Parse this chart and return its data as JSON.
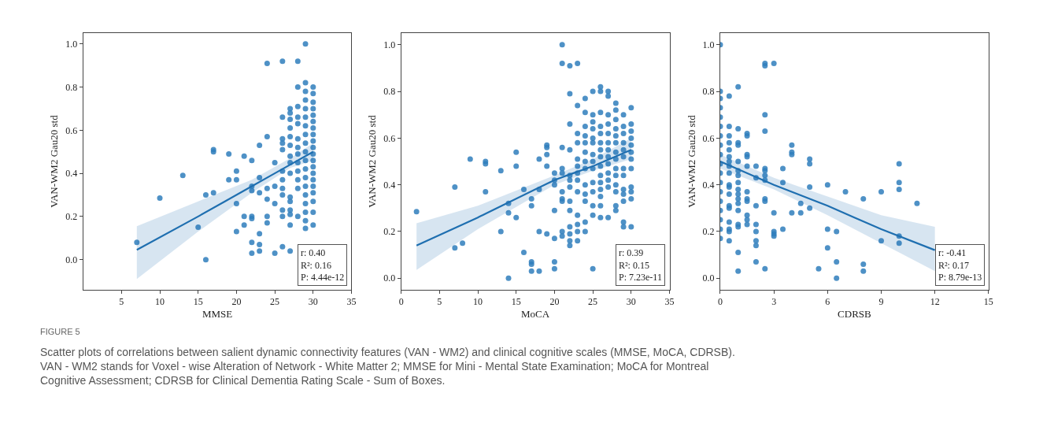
{
  "chart_data": [
    {
      "type": "scatter",
      "xlabel": "MMSE",
      "ylabel": "VAN-WM2 Gau20 std",
      "xlim": [
        0,
        35
      ],
      "ylim": [
        -0.14,
        1.05
      ],
      "xticks": [
        5,
        10,
        15,
        20,
        25,
        30,
        35
      ],
      "yticks": [
        {
          "value": 0,
          "label": "0.0"
        },
        {
          "value": 0.2,
          "label": "0.2"
        },
        {
          "value": 0.4,
          "label": "0.4"
        },
        {
          "value": 0.6,
          "label": "0.6"
        },
        {
          "value": 0.8,
          "label": "0.8"
        },
        {
          "value": 1,
          "label": "1.0"
        }
      ],
      "series": [
        {
          "marker": "circle",
          "color": "#2f7ebc",
          "x": [
            7,
            10,
            13,
            15,
            16,
            16,
            17,
            17,
            17,
            19,
            19,
            20,
            20,
            20,
            20,
            21,
            21,
            21,
            22,
            22,
            22,
            22,
            22,
            22,
            22,
            23,
            23,
            23,
            23,
            23,
            23,
            24,
            24,
            24,
            24,
            24,
            24,
            25,
            25,
            25,
            25,
            26,
            26,
            26,
            26,
            26,
            26,
            26,
            26,
            26,
            26,
            26,
            26,
            27,
            27,
            27,
            27,
            27,
            27,
            27,
            27,
            27,
            27,
            27,
            27,
            27,
            27,
            27,
            28,
            28,
            28,
            28,
            28,
            28,
            28,
            28,
            28,
            28,
            28,
            28,
            28,
            29,
            29,
            29,
            29,
            29,
            29,
            29,
            29,
            29,
            29,
            29,
            29,
            29,
            29,
            29,
            29,
            29,
            29,
            29,
            30,
            30,
            30,
            30,
            30,
            30,
            30,
            30,
            30,
            30,
            30,
            30,
            30,
            30,
            30,
            30,
            30,
            30,
            30,
            30
          ],
          "values": [
            0.08,
            0.285,
            0.39,
            0.15,
            0.3,
            0.0,
            0.51,
            0.5,
            0.31,
            0.49,
            0.37,
            0.41,
            0.37,
            0.26,
            0.13,
            0.48,
            0.2,
            0.16,
            0.46,
            0.34,
            0.32,
            0.2,
            0.19,
            0.08,
            0.03,
            0.53,
            0.38,
            0.31,
            0.12,
            0.07,
            0.04,
            0.91,
            0.57,
            0.33,
            0.28,
            0.2,
            0.17,
            0.45,
            0.34,
            0.26,
            0.03,
            0.92,
            0.66,
            0.56,
            0.54,
            0.51,
            0.41,
            0.37,
            0.33,
            0.3,
            0.23,
            0.2,
            0.06,
            0.7,
            0.68,
            0.65,
            0.61,
            0.57,
            0.53,
            0.48,
            0.45,
            0.4,
            0.29,
            0.27,
            0.23,
            0.21,
            0.16,
            0.04,
            0.92,
            0.8,
            0.71,
            0.66,
            0.63,
            0.56,
            0.52,
            0.49,
            0.45,
            0.41,
            0.37,
            0.33,
            0.2,
            1.0,
            0.82,
            0.78,
            0.74,
            0.7,
            0.66,
            0.62,
            0.58,
            0.54,
            0.5,
            0.46,
            0.42,
            0.38,
            0.34,
            0.3,
            0.26,
            0.22,
            0.18,
            0.145,
            0.8,
            0.77,
            0.73,
            0.7,
            0.67,
            0.64,
            0.61,
            0.58,
            0.55,
            0.52,
            0.49,
            0.46,
            0.43,
            0.4,
            0.37,
            0.34,
            0.31,
            0.27,
            0.22,
            0.16
          ]
        },
        {
          "type": "line",
          "color": "#1f6fb0",
          "x": [
            7,
            15,
            22,
            27,
            30
          ],
          "values": [
            0.045,
            0.2,
            0.34,
            0.44,
            0.5
          ],
          "lower": [
            -0.09,
            0.13,
            0.31,
            0.425,
            0.46
          ],
          "upper": [
            0.155,
            0.27,
            0.37,
            0.47,
            0.54
          ]
        }
      ],
      "annotations": [
        "r: 0.40\nR²: 0.16\nP: 4.44e-12",
        "FIGURE 5",
        "Scatter plots of correlations between salient dynamic connectivity features (VAN - WM2) and clinical cognitive scales (MMSE, MoCA, CDRSB). VAN - WM2 stands for Voxel - wise Alteration of Network - White Matter 2; MMSE for Mini - Mental State Examination; MoCA for Montreal Cognitive Assessment; CDRSB for Clinical Dementia Rating Scale - Sum of Boxes."
      ]
    },
    {
      "type": "scatter",
      "xlabel": "MoCA",
      "ylabel": "VAN-WM2 Gau20 std",
      "xlim": [
        0,
        35
      ],
      "ylim": [
        -0.05,
        1.05
      ],
      "xticks": [
        0,
        5,
        10,
        15,
        20,
        25,
        30,
        35
      ],
      "yticks": [
        {
          "value": 0,
          "label": "0.0"
        },
        {
          "value": 0.2,
          "label": "0.2"
        },
        {
          "value": 0.4,
          "label": "0.4"
        },
        {
          "value": 0.6,
          "label": "0.6"
        },
        {
          "value": 0.8,
          "label": "0.8"
        },
        {
          "value": 1,
          "label": "1.0"
        }
      ],
      "series": [
        {
          "marker": "circle",
          "color": "#2f7ebc",
          "x": [
            2,
            7,
            7,
            8,
            9,
            11,
            11,
            11,
            13,
            13,
            14,
            14,
            14,
            15,
            15,
            15,
            16,
            16,
            17,
            17,
            17,
            17,
            17,
            18,
            18,
            18,
            18,
            19,
            19,
            19,
            19,
            19,
            20,
            20,
            20,
            20,
            20,
            20,
            20,
            21,
            21,
            21,
            21,
            21,
            21,
            21,
            21,
            21,
            21,
            22,
            22,
            22,
            22,
            22,
            22,
            22,
            22,
            22,
            22,
            22,
            22,
            22,
            23,
            23,
            23,
            23,
            23,
            23,
            23,
            23,
            23,
            23,
            23,
            23,
            23,
            24,
            24,
            24,
            24,
            24,
            24,
            24,
            24,
            24,
            24,
            24,
            24,
            24,
            25,
            25,
            25,
            25,
            25,
            25,
            25,
            25,
            25,
            25,
            25,
            25,
            25,
            25,
            26,
            26,
            26,
            26,
            26,
            26,
            26,
            26,
            26,
            26,
            26,
            26,
            26,
            26,
            26,
            27,
            27,
            27,
            27,
            27,
            27,
            27,
            27,
            27,
            27,
            27,
            27,
            27,
            28,
            28,
            28,
            28,
            28,
            28,
            28,
            28,
            28,
            28,
            28,
            28,
            28,
            28,
            29,
            29,
            29,
            29,
            29,
            29,
            29,
            29,
            29,
            29,
            29,
            29,
            29,
            30,
            30,
            30,
            30,
            30,
            30,
            30,
            30,
            30,
            30,
            30,
            30
          ],
          "values": [
            0.285,
            0.39,
            0.13,
            0.15,
            0.51,
            0.5,
            0.49,
            0.37,
            0.46,
            0.2,
            0.32,
            0.28,
            0.0,
            0.54,
            0.48,
            0.26,
            0.38,
            0.11,
            0.34,
            0.31,
            0.07,
            0.06,
            0.03,
            0.51,
            0.38,
            0.2,
            0.03,
            0.57,
            0.56,
            0.53,
            0.48,
            0.19,
            0.45,
            0.42,
            0.4,
            0.29,
            0.17,
            0.07,
            0.04,
            1.0,
            0.92,
            0.56,
            0.47,
            0.45,
            0.37,
            0.34,
            0.33,
            0.2,
            0.18,
            0.91,
            0.79,
            0.66,
            0.55,
            0.44,
            0.42,
            0.39,
            0.33,
            0.29,
            0.22,
            0.19,
            0.16,
            0.14,
            0.92,
            0.74,
            0.62,
            0.58,
            0.51,
            0.48,
            0.45,
            0.42,
            0.37,
            0.27,
            0.23,
            0.2,
            0.16,
            0.77,
            0.71,
            0.65,
            0.61,
            0.58,
            0.54,
            0.5,
            0.47,
            0.4,
            0.36,
            0.33,
            0.24,
            0.2,
            0.8,
            0.7,
            0.67,
            0.64,
            0.6,
            0.58,
            0.53,
            0.5,
            0.47,
            0.41,
            0.37,
            0.31,
            0.27,
            0.04,
            0.82,
            0.8,
            0.71,
            0.65,
            0.62,
            0.58,
            0.55,
            0.52,
            0.48,
            0.44,
            0.41,
            0.38,
            0.35,
            0.31,
            0.26,
            0.8,
            0.78,
            0.7,
            0.66,
            0.62,
            0.58,
            0.55,
            0.52,
            0.49,
            0.45,
            0.42,
            0.39,
            0.26,
            0.75,
            0.72,
            0.68,
            0.64,
            0.61,
            0.58,
            0.54,
            0.51,
            0.47,
            0.44,
            0.4,
            0.37,
            0.31,
            0.29,
            0.7,
            0.65,
            0.62,
            0.58,
            0.55,
            0.52,
            0.47,
            0.44,
            0.38,
            0.36,
            0.33,
            0.24,
            0.22,
            0.73,
            0.66,
            0.63,
            0.6,
            0.57,
            0.54,
            0.51,
            0.47,
            0.39,
            0.37,
            0.34,
            0.22
          ]
        },
        {
          "type": "line",
          "color": "#1f6fb0",
          "x": [
            2,
            10,
            20,
            25,
            30
          ],
          "values": [
            0.14,
            0.26,
            0.42,
            0.48,
            0.55
          ],
          "lower": [
            0.035,
            0.21,
            0.4,
            0.46,
            0.51
          ],
          "upper": [
            0.235,
            0.31,
            0.44,
            0.51,
            0.6
          ]
        }
      ],
      "annotations": [
        "r: 0.39\nR²: 0.15\nP: 7.23e-11"
      ]
    },
    {
      "type": "scatter",
      "xlabel": "CDRSB",
      "ylabel": "VAN-WM2 Gau20 std",
      "xlim": [
        0,
        15
      ],
      "ylim": [
        -0.05,
        1.05
      ],
      "xticks": [
        0,
        3,
        6,
        9,
        12,
        15
      ],
      "yticks": [
        {
          "value": 0,
          "label": "0.0"
        },
        {
          "value": 0.2,
          "label": "0.2"
        },
        {
          "value": 0.4,
          "label": "0.4"
        },
        {
          "value": 0.6,
          "label": "0.6"
        },
        {
          "value": 0.8,
          "label": "0.8"
        },
        {
          "value": 1,
          "label": "1.0"
        }
      ],
      "series": [
        {
          "marker": "circle",
          "color": "#2f7ebc",
          "x": [
            0,
            0,
            0,
            0,
            0,
            0,
            0,
            0,
            0,
            0,
            0,
            0,
            0,
            0,
            0,
            0,
            0,
            0,
            0.5,
            0.5,
            0.5,
            0.5,
            0.5,
            0.5,
            0.5,
            0.5,
            0.5,
            0.5,
            0.5,
            0.5,
            0.5,
            0.5,
            0.5,
            0.5,
            0.5,
            0.5,
            1,
            1,
            1,
            1,
            1,
            1,
            1,
            1,
            1,
            1,
            1,
            1,
            1,
            1,
            1,
            1,
            1,
            1.5,
            1.5,
            1.5,
            1.5,
            1.5,
            1.5,
            1.5,
            1.5,
            1.5,
            1.5,
            1.5,
            2,
            2,
            2,
            2,
            2,
            2,
            2,
            2,
            2.5,
            2.5,
            2.5,
            2.5,
            2.5,
            2.5,
            2.5,
            2.5,
            2.5,
            2.5,
            2.5,
            3,
            3,
            3,
            3,
            3,
            3.5,
            3.5,
            3.5,
            4,
            4,
            4,
            4,
            4.5,
            4.5,
            5,
            5,
            5,
            5,
            5.5,
            6,
            6,
            6,
            6.5,
            6.5,
            6.5,
            7,
            8,
            8,
            8,
            9,
            9,
            10,
            10,
            10,
            10,
            10,
            11
          ],
          "values": [
            1.0,
            0.8,
            0.77,
            0.73,
            0.69,
            0.65,
            0.61,
            0.57,
            0.53,
            0.49,
            0.45,
            0.41,
            0.37,
            0.33,
            0.29,
            0.25,
            0.21,
            0.17,
            0.78,
            0.65,
            0.61,
            0.58,
            0.55,
            0.52,
            0.5,
            0.48,
            0.45,
            0.4,
            0.39,
            0.36,
            0.31,
            0.3,
            0.24,
            0.21,
            0.2,
            0.16,
            0.82,
            0.64,
            0.58,
            0.57,
            0.5,
            0.46,
            0.44,
            0.41,
            0.38,
            0.36,
            0.34,
            0.32,
            0.29,
            0.23,
            0.22,
            0.11,
            0.03,
            0.62,
            0.61,
            0.53,
            0.52,
            0.48,
            0.37,
            0.34,
            0.33,
            0.27,
            0.25,
            0.23,
            0.48,
            0.43,
            0.31,
            0.23,
            0.2,
            0.16,
            0.14,
            0.07,
            0.92,
            0.91,
            0.7,
            0.63,
            0.47,
            0.46,
            0.44,
            0.42,
            0.34,
            0.33,
            0.04,
            0.92,
            0.28,
            0.2,
            0.19,
            0.18,
            0.47,
            0.41,
            0.21,
            0.57,
            0.54,
            0.53,
            0.28,
            0.32,
            0.28,
            0.51,
            0.49,
            0.39,
            0.3,
            0.04,
            0.4,
            0.21,
            0.13,
            0.2,
            0.07,
            0.0,
            0.37,
            0.34,
            0.06,
            0.03,
            0.37,
            0.16,
            0.49,
            0.41,
            0.38,
            0.18,
            0.15,
            0.32
          ]
        },
        {
          "type": "line",
          "color": "#1f6fb0",
          "x": [
            0,
            3,
            6,
            9,
            12
          ],
          "values": [
            0.5,
            0.4,
            0.31,
            0.21,
            0.12
          ],
          "lower": [
            0.47,
            0.38,
            0.27,
            0.15,
            0.03
          ],
          "upper": [
            0.53,
            0.43,
            0.35,
            0.27,
            0.22
          ]
        }
      ],
      "annotations": [
        "r: -0.41\nR²: 0.17\nP: 8.79e-13"
      ]
    }
  ]
}
